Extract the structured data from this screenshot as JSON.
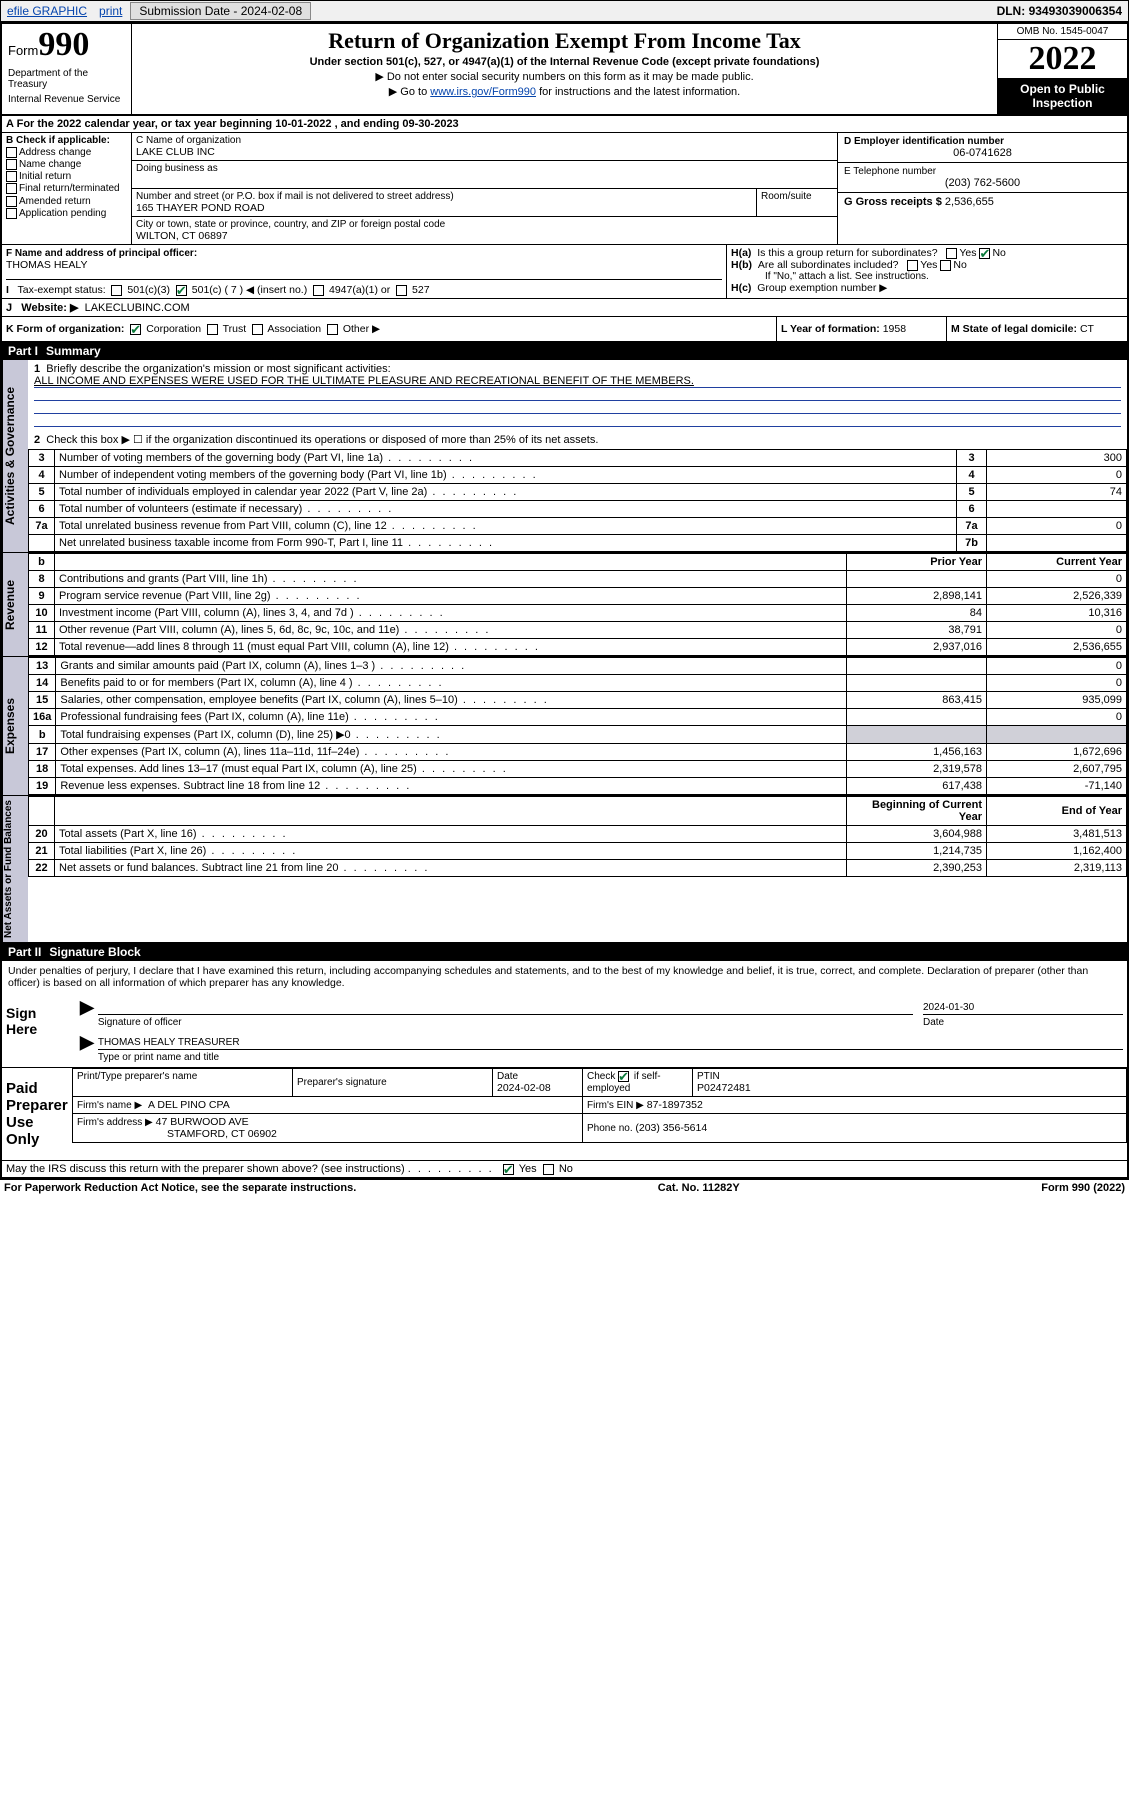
{
  "topbar": {
    "efile": "efile GRAPHIC",
    "print": "print",
    "submission_label": "Submission Date - ",
    "submission_date": "2024-02-08",
    "dln_label": "DLN: ",
    "dln": "93493039006354"
  },
  "header": {
    "form_word": "Form",
    "form_no": "990",
    "dept": "Department of the Treasury",
    "irs": "Internal Revenue Service",
    "title": "Return of Organization Exempt From Income Tax",
    "sub": "Under section 501(c), 527, or 4947(a)(1) of the Internal Revenue Code (except private foundations)",
    "note1": "▶ Do not enter social security numbers on this form as it may be made public.",
    "note2_pre": "▶ Go to ",
    "note2_link": "www.irs.gov/Form990",
    "note2_post": " for instructions and the latest information.",
    "omb": "OMB No. 1545-0047",
    "year": "2022",
    "open_pub": "Open to Public Inspection"
  },
  "line_a": {
    "text_pre": "For the 2022 calendar year, or tax year beginning ",
    "begin": "10-01-2022",
    "mid": " , and ending ",
    "end": "09-30-2023"
  },
  "section_b": {
    "title": "B Check if applicable:",
    "items": [
      "Address change",
      "Name change",
      "Initial return",
      "Final return/terminated",
      "Amended return",
      "Application pending"
    ]
  },
  "section_c": {
    "label": "C Name of organization",
    "name": "LAKE CLUB INC",
    "dba_label": "Doing business as",
    "addr_label": "Number and street (or P.O. box if mail is not delivered to street address)",
    "room_label": "Room/suite",
    "addr": "165 THAYER POND ROAD",
    "city_label": "City or town, state or province, country, and ZIP or foreign postal code",
    "city": "WILTON, CT  06897"
  },
  "section_d": {
    "label": "D Employer identification number",
    "value": "06-0741628"
  },
  "section_e": {
    "label": "E Telephone number",
    "value": "(203) 762-5600"
  },
  "section_g": {
    "label": "G Gross receipts $ ",
    "value": "2,536,655"
  },
  "section_f": {
    "label": "F Name and address of principal officer:",
    "name": "THOMAS HEALY"
  },
  "section_h": {
    "ha": "Is this a group return for subordinates?",
    "hb": "Are all subordinates included?",
    "hb_note": "If \"No,\" attach a list. See instructions.",
    "hc": "Group exemption number ▶",
    "yes": "Yes",
    "no": "No"
  },
  "tax_exempt": {
    "label": "Tax-exempt status:",
    "c3": "501(c)(3)",
    "c": "501(c) ( 7 ) ◀ (insert no.)",
    "a1": "4947(a)(1) or",
    "s527": "527"
  },
  "website": {
    "label": "Website: ▶",
    "value": "LAKECLUBINC.COM"
  },
  "form_org": {
    "label": "K Form of organization:",
    "corp": "Corporation",
    "trust": "Trust",
    "assoc": "Association",
    "other": "Other ▶"
  },
  "year_formation": {
    "label": "L Year of formation: ",
    "value": "1958"
  },
  "domicile": {
    "label": "M State of legal domicile: ",
    "value": "CT"
  },
  "part1": {
    "label": "Part I",
    "title": "Summary"
  },
  "part2": {
    "label": "Part II",
    "title": "Signature Block"
  },
  "mission": {
    "q": "Briefly describe the organization's mission or most significant activities:",
    "text": "ALL INCOME AND EXPENSES WERE USED FOR THE ULTIMATE PLEASURE AND RECREATIONAL BENEFIT OF THE MEMBERS."
  },
  "line2": "Check this box ▶ ☐  if the organization discontinued its operations or disposed of more than 25% of its net assets.",
  "gov_rows": [
    {
      "n": "3",
      "desc": "Number of voting members of the governing body (Part VI, line 1a)",
      "rn": "3",
      "v": "300"
    },
    {
      "n": "4",
      "desc": "Number of independent voting members of the governing body (Part VI, line 1b)",
      "rn": "4",
      "v": "0"
    },
    {
      "n": "5",
      "desc": "Total number of individuals employed in calendar year 2022 (Part V, line 2a)",
      "rn": "5",
      "v": "74"
    },
    {
      "n": "6",
      "desc": "Total number of volunteers (estimate if necessary)",
      "rn": "6",
      "v": ""
    },
    {
      "n": "7a",
      "desc": "Total unrelated business revenue from Part VIII, column (C), line 12",
      "rn": "7a",
      "v": "0"
    },
    {
      "n": "",
      "desc": "Net unrelated business taxable income from Form 990-T, Part I, line 11",
      "rn": "7b",
      "v": ""
    }
  ],
  "pycy_header": {
    "b": "b",
    "py": "Prior Year",
    "cy": "Current Year"
  },
  "revenue_rows": [
    {
      "n": "8",
      "desc": "Contributions and grants (Part VIII, line 1h)",
      "py": "",
      "cy": "0"
    },
    {
      "n": "9",
      "desc": "Program service revenue (Part VIII, line 2g)",
      "py": "2,898,141",
      "cy": "2,526,339"
    },
    {
      "n": "10",
      "desc": "Investment income (Part VIII, column (A), lines 3, 4, and 7d )",
      "py": "84",
      "cy": "10,316"
    },
    {
      "n": "11",
      "desc": "Other revenue (Part VIII, column (A), lines 5, 6d, 8c, 9c, 10c, and 11e)",
      "py": "38,791",
      "cy": "0"
    },
    {
      "n": "12",
      "desc": "Total revenue—add lines 8 through 11 (must equal Part VIII, column (A), line 12)",
      "py": "2,937,016",
      "cy": "2,536,655"
    }
  ],
  "expense_rows": [
    {
      "n": "13",
      "desc": "Grants and similar amounts paid (Part IX, column (A), lines 1–3 )",
      "py": "",
      "cy": "0"
    },
    {
      "n": "14",
      "desc": "Benefits paid to or for members (Part IX, column (A), line 4 )",
      "py": "",
      "cy": "0"
    },
    {
      "n": "15",
      "desc": "Salaries, other compensation, employee benefits (Part IX, column (A), lines 5–10)",
      "py": "863,415",
      "cy": "935,099"
    },
    {
      "n": "16a",
      "desc": "Professional fundraising fees (Part IX, column (A), line 11e)",
      "py": "",
      "cy": "0"
    },
    {
      "n": "b",
      "desc": "Total fundraising expenses (Part IX, column (D), line 25) ▶0",
      "py": "SHADE",
      "cy": "SHADE"
    },
    {
      "n": "17",
      "desc": "Other expenses (Part IX, column (A), lines 11a–11d, 11f–24e)",
      "py": "1,456,163",
      "cy": "1,672,696"
    },
    {
      "n": "18",
      "desc": "Total expenses. Add lines 13–17 (must equal Part IX, column (A), line 25)",
      "py": "2,319,578",
      "cy": "2,607,795"
    },
    {
      "n": "19",
      "desc": "Revenue less expenses. Subtract line 18 from line 12",
      "py": "617,438",
      "cy": "-71,140"
    }
  ],
  "balance_header": {
    "py": "Beginning of Current Year",
    "cy": "End of Year"
  },
  "balance_rows": [
    {
      "n": "20",
      "desc": "Total assets (Part X, line 16)",
      "py": "3,604,988",
      "cy": "3,481,513"
    },
    {
      "n": "21",
      "desc": "Total liabilities (Part X, line 26)",
      "py": "1,214,735",
      "cy": "1,162,400"
    },
    {
      "n": "22",
      "desc": "Net assets or fund balances. Subtract line 21 from line 20",
      "py": "2,390,253",
      "cy": "2,319,113"
    }
  ],
  "sidebars": {
    "gov": "Activities & Governance",
    "rev": "Revenue",
    "exp": "Expenses",
    "bal": "Net Assets or Fund Balances"
  },
  "sig_decl": "Under penalties of perjury, I declare that I have examined this return, including accompanying schedules and statements, and to the best of my knowledge and belief, it is true, correct, and complete. Declaration of preparer (other than officer) is based on all information of which preparer has any knowledge.",
  "sign": {
    "here": "Sign Here",
    "sig_officer": "Signature of officer",
    "date": "Date",
    "date_val": "2024-01-30",
    "name": "THOMAS HEALY  TREASURER",
    "name_label": "Type or print name and title"
  },
  "paid": {
    "title": "Paid Preparer Use Only",
    "h_name": "Print/Type preparer's name",
    "h_sig": "Preparer's signature",
    "h_date": "Date",
    "date": "2024-02-08",
    "check_label": "Check ☑ if self-employed",
    "ptin_label": "PTIN",
    "ptin": "P02472481",
    "firm_name_label": "Firm's name    ▶",
    "firm_name": "A DEL PINO CPA",
    "firm_ein_label": "Firm's EIN ▶",
    "firm_ein": "87-1897352",
    "firm_addr_label": "Firm's address ▶",
    "firm_addr1": "47 BURWOOD AVE",
    "firm_addr2": "STAMFORD, CT  06902",
    "phone_label": "Phone no. ",
    "phone": "(203) 356-5614"
  },
  "discuss": {
    "q": "May the IRS discuss this return with the preparer shown above? (see instructions)",
    "yes": "Yes",
    "no": "No"
  },
  "footer": {
    "left": "For Paperwork Reduction Act Notice, see the separate instructions.",
    "mid": "Cat. No. 11282Y",
    "right": "Form 990 (2022)"
  }
}
